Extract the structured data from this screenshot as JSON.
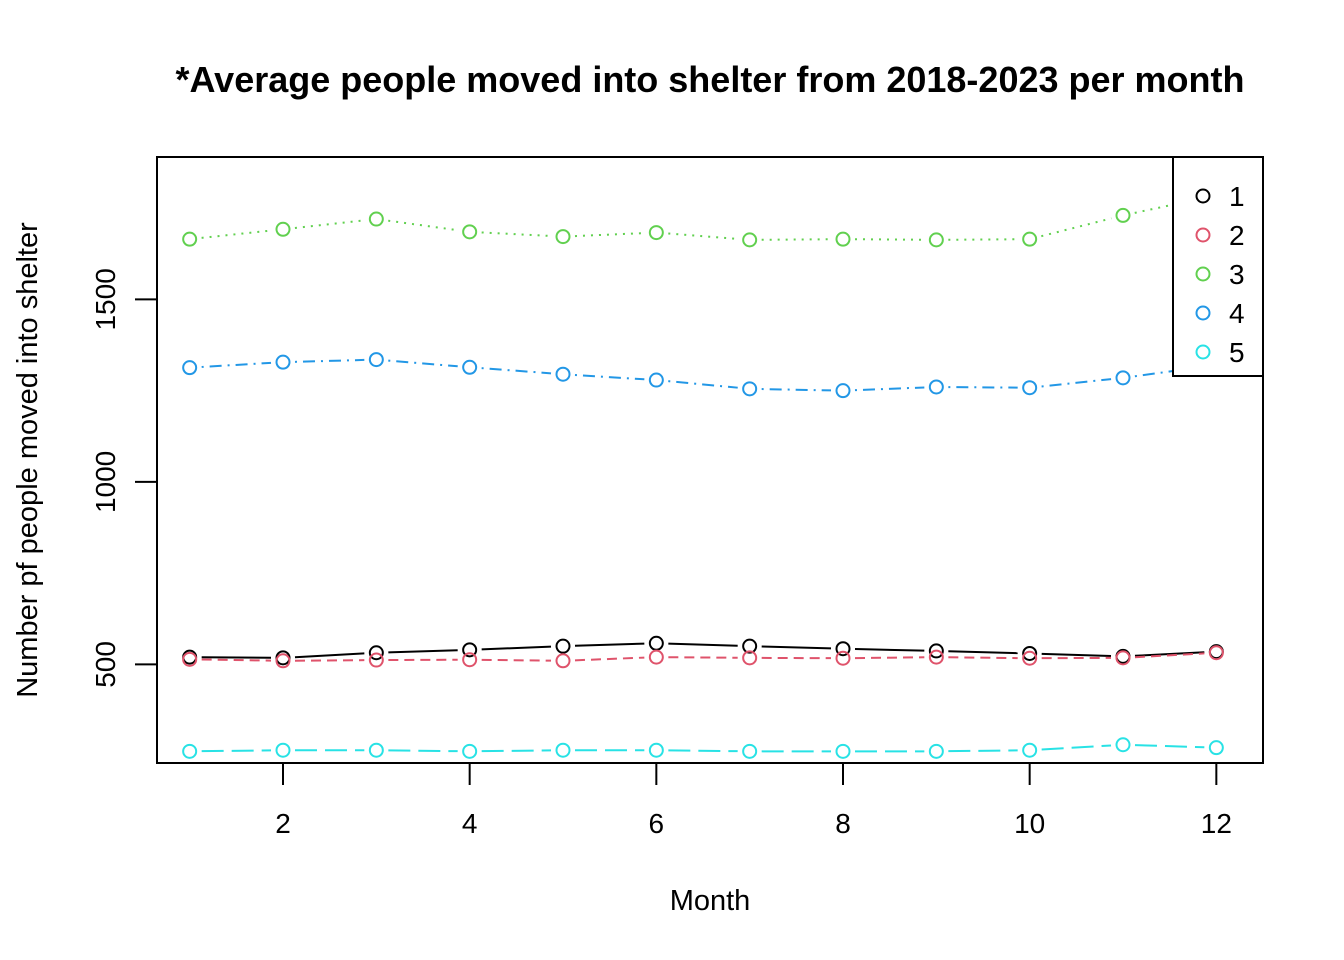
{
  "chart_data": {
    "type": "line",
    "title": "*Average people moved into shelter from 2018-2023 per month",
    "xlabel": "Month",
    "ylabel": "Number pf people moved into shelter",
    "xlim": [
      0.65,
      12.5
    ],
    "ylim": [
      230,
      1890
    ],
    "x_ticks": [
      "2",
      "4",
      "6",
      "8",
      "10",
      "12"
    ],
    "y_ticks": [
      "500",
      "1000",
      "1500"
    ],
    "x": [
      1,
      2,
      3,
      4,
      5,
      6,
      7,
      8,
      9,
      10,
      11,
      12
    ],
    "legend_position": "top-right",
    "grid": false,
    "series": [
      {
        "name": "1",
        "color": "#000000",
        "dash": "",
        "values": [
          520,
          518,
          532,
          540,
          550,
          558,
          550,
          543,
          537,
          530,
          522,
          535
        ]
      },
      {
        "name": "2",
        "color": "#DF536B",
        "dash": "10 6",
        "values": [
          514,
          510,
          512,
          513,
          510,
          520,
          518,
          517,
          520,
          517,
          518,
          532
        ]
      },
      {
        "name": "3",
        "color": "#61D04F",
        "dash": "2 6",
        "values": [
          1665,
          1692,
          1720,
          1685,
          1672,
          1683,
          1663,
          1665,
          1663,
          1665,
          1730,
          1785
        ]
      },
      {
        "name": "4",
        "color": "#2297E6",
        "dash": "2 6 12 6",
        "values": [
          1313,
          1328,
          1335,
          1314,
          1295,
          1279,
          1255,
          1250,
          1260,
          1258,
          1285,
          1320
        ]
      },
      {
        "name": "5",
        "color": "#28E2E5",
        "dash": "22 8",
        "values": [
          262,
          265,
          265,
          262,
          265,
          265,
          262,
          262,
          262,
          265,
          280,
          272
        ]
      }
    ]
  }
}
